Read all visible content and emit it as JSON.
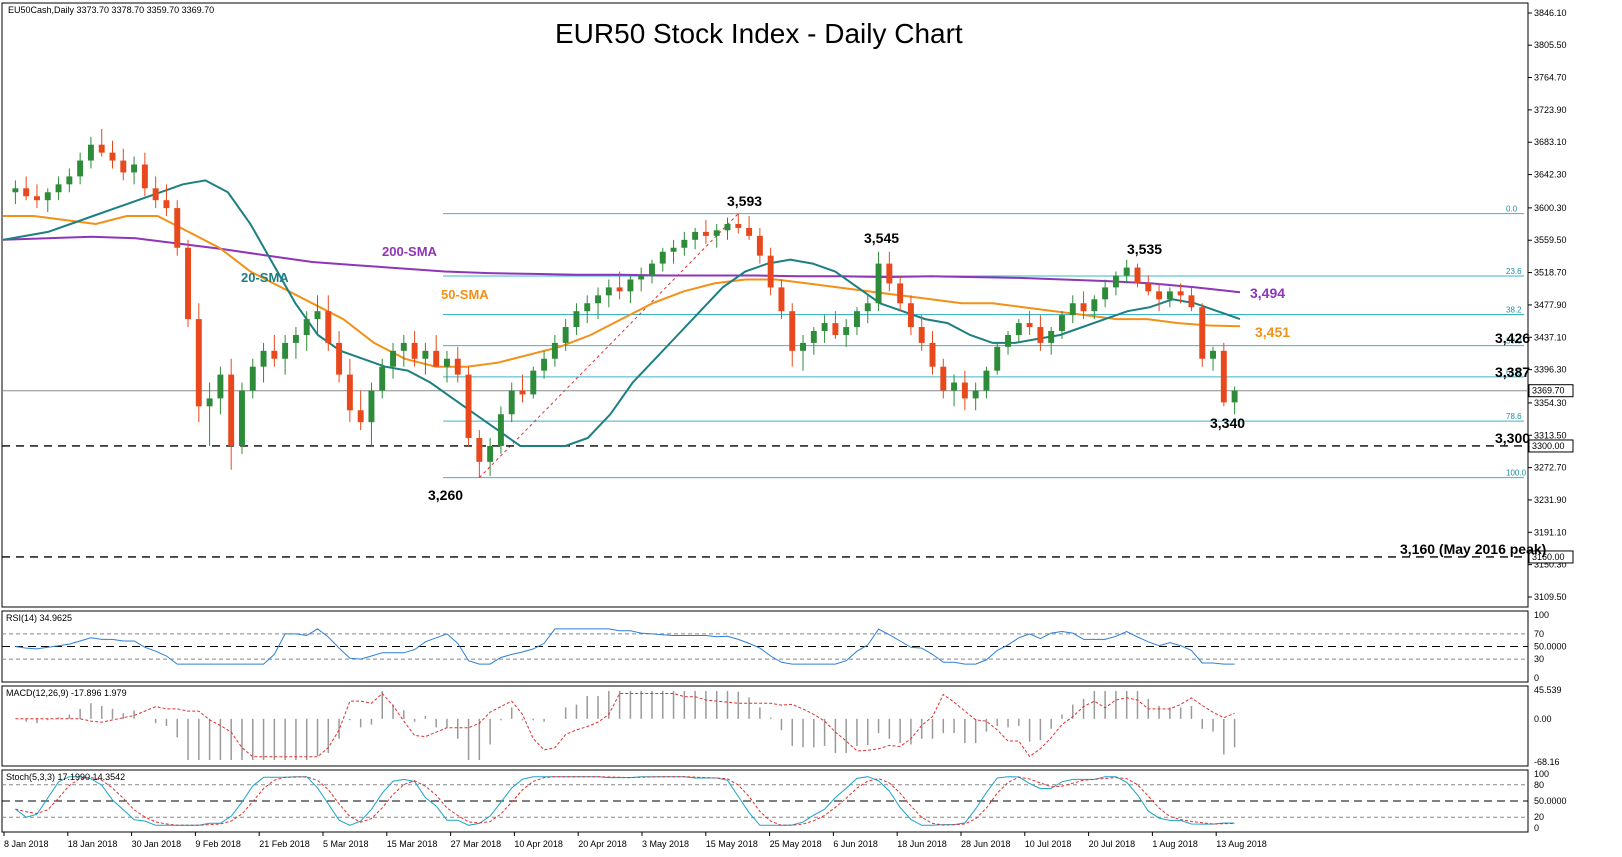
{
  "chart_data": {
    "type": "candlestick",
    "title": "EUR50 Stock Index - Daily Chart",
    "symbol_header": "EU50Cash,Daily 3373.70 3378.70 3359.70 3369.70",
    "price_axis": {
      "range": [
        3109.5,
        3846.1
      ],
      "ticks": [
        "3846.10",
        "3805.50",
        "3764.70",
        "3723.90",
        "3683.10",
        "3642.30",
        "3600.30",
        "3559.50",
        "3518.70",
        "3477.90",
        "3437.10",
        "3396.30",
        "3354.30",
        "3313.50",
        "3272.70",
        "3231.90",
        "3191.10",
        "3150.30",
        "3109.50"
      ],
      "current_price": "3369.70",
      "marked_levels": [
        "3300.00",
        "3160.00"
      ]
    },
    "dates": [
      "8 Jan 2018",
      "18 Jan 2018",
      "30 Jan 2018",
      "9 Feb 2018",
      "21 Feb 2018",
      "5 Mar 2018",
      "15 Mar 2018",
      "27 Mar 2018",
      "10 Apr 2018",
      "20 Apr 2018",
      "3 May 2018",
      "15 May 2018",
      "25 May 2018",
      "6 Jun 2018",
      "18 Jun 2018",
      "28 Jun 2018",
      "10 Jul 2018",
      "20 Jul 2018",
      "1 Aug 2018",
      "13 Aug 2018"
    ],
    "swing_labels": [
      "3,593",
      "3,545",
      "3,535",
      "3,260",
      "3,340"
    ],
    "level_labels": [
      "3,494",
      "3,451",
      "3,426",
      "3,387",
      "3,300",
      "3,160 (May 2016 peak)"
    ],
    "series_labels": {
      "sma200": "200-SMA",
      "sma20": "20-SMA",
      "sma50": "50-SMA"
    },
    "fibonacci": {
      "levels": [
        "0.0",
        "23.6",
        "38.2",
        "50.0",
        "61.8",
        "78.6",
        "100.0"
      ],
      "high": 3593,
      "low": 3260
    },
    "candles_ohlc": [
      [
        3620,
        3635,
        3605,
        3625
      ],
      [
        3625,
        3640,
        3610,
        3615
      ],
      [
        3615,
        3630,
        3600,
        3610
      ],
      [
        3610,
        3625,
        3595,
        3620
      ],
      [
        3620,
        3640,
        3610,
        3630
      ],
      [
        3630,
        3650,
        3620,
        3640
      ],
      [
        3640,
        3670,
        3630,
        3660
      ],
      [
        3660,
        3690,
        3650,
        3680
      ],
      [
        3680,
        3700,
        3665,
        3670
      ],
      [
        3670,
        3685,
        3650,
        3660
      ],
      [
        3660,
        3675,
        3635,
        3645
      ],
      [
        3645,
        3665,
        3630,
        3655
      ],
      [
        3655,
        3670,
        3615,
        3625
      ],
      [
        3625,
        3640,
        3600,
        3610
      ],
      [
        3610,
        3630,
        3590,
        3600
      ],
      [
        3600,
        3610,
        3540,
        3550
      ],
      [
        3550,
        3560,
        3450,
        3460
      ],
      [
        3460,
        3480,
        3330,
        3350
      ],
      [
        3350,
        3380,
        3300,
        3360
      ],
      [
        3360,
        3400,
        3340,
        3390
      ],
      [
        3390,
        3410,
        3270,
        3300
      ],
      [
        3300,
        3380,
        3290,
        3370
      ],
      [
        3370,
        3410,
        3360,
        3400
      ],
      [
        3400,
        3430,
        3380,
        3420
      ],
      [
        3420,
        3440,
        3400,
        3410
      ],
      [
        3410,
        3440,
        3390,
        3430
      ],
      [
        3430,
        3450,
        3410,
        3440
      ],
      [
        3440,
        3470,
        3420,
        3460
      ],
      [
        3460,
        3490,
        3440,
        3470
      ],
      [
        3470,
        3490,
        3420,
        3430
      ],
      [
        3430,
        3445,
        3380,
        3390
      ],
      [
        3390,
        3410,
        3330,
        3345
      ],
      [
        3345,
        3370,
        3320,
        3330
      ],
      [
        3330,
        3380,
        3300,
        3370
      ],
      [
        3370,
        3410,
        3360,
        3400
      ],
      [
        3400,
        3430,
        3385,
        3420
      ],
      [
        3420,
        3440,
        3400,
        3430
      ],
      [
        3430,
        3445,
        3400,
        3410
      ],
      [
        3410,
        3430,
        3390,
        3420
      ],
      [
        3420,
        3440,
        3400,
        3400
      ],
      [
        3400,
        3420,
        3380,
        3410
      ],
      [
        3410,
        3425,
        3380,
        3390
      ],
      [
        3390,
        3400,
        3300,
        3310
      ],
      [
        3310,
        3320,
        3260,
        3280
      ],
      [
        3280,
        3310,
        3262,
        3300
      ],
      [
        3300,
        3350,
        3290,
        3340
      ],
      [
        3340,
        3380,
        3330,
        3370
      ],
      [
        3370,
        3390,
        3355,
        3365
      ],
      [
        3365,
        3400,
        3360,
        3395
      ],
      [
        3395,
        3420,
        3385,
        3410
      ],
      [
        3410,
        3440,
        3400,
        3430
      ],
      [
        3430,
        3460,
        3420,
        3450
      ],
      [
        3450,
        3480,
        3440,
        3470
      ],
      [
        3470,
        3490,
        3455,
        3480
      ],
      [
        3480,
        3500,
        3460,
        3490
      ],
      [
        3490,
        3510,
        3475,
        3500
      ],
      [
        3500,
        3520,
        3485,
        3495
      ],
      [
        3495,
        3515,
        3480,
        3510
      ],
      [
        3510,
        3525,
        3495,
        3515
      ],
      [
        3515,
        3535,
        3505,
        3530
      ],
      [
        3530,
        3550,
        3520,
        3545
      ],
      [
        3545,
        3560,
        3530,
        3550
      ],
      [
        3550,
        3570,
        3540,
        3560
      ],
      [
        3560,
        3575,
        3548,
        3570
      ],
      [
        3570,
        3585,
        3555,
        3565
      ],
      [
        3565,
        3580,
        3550,
        3572
      ],
      [
        3572,
        3588,
        3560,
        3580
      ],
      [
        3580,
        3593,
        3568,
        3575
      ],
      [
        3575,
        3590,
        3560,
        3565
      ],
      [
        3565,
        3575,
        3530,
        3540
      ],
      [
        3540,
        3550,
        3490,
        3500
      ],
      [
        3500,
        3510,
        3460,
        3470
      ],
      [
        3470,
        3480,
        3400,
        3420
      ],
      [
        3420,
        3440,
        3395,
        3430
      ],
      [
        3430,
        3450,
        3415,
        3445
      ],
      [
        3445,
        3465,
        3430,
        3455
      ],
      [
        3455,
        3470,
        3435,
        3440
      ],
      [
        3440,
        3460,
        3425,
        3450
      ],
      [
        3450,
        3475,
        3440,
        3470
      ],
      [
        3470,
        3490,
        3455,
        3480
      ],
      [
        3480,
        3545,
        3470,
        3530
      ],
      [
        3530,
        3545,
        3495,
        3505
      ],
      [
        3505,
        3515,
        3470,
        3480
      ],
      [
        3480,
        3490,
        3440,
        3450
      ],
      [
        3450,
        3465,
        3420,
        3430
      ],
      [
        3430,
        3445,
        3390,
        3400
      ],
      [
        3400,
        3410,
        3360,
        3370
      ],
      [
        3370,
        3390,
        3350,
        3380
      ],
      [
        3380,
        3395,
        3345,
        3360
      ],
      [
        3360,
        3380,
        3345,
        3370
      ],
      [
        3370,
        3400,
        3360,
        3395
      ],
      [
        3395,
        3430,
        3390,
        3425
      ],
      [
        3425,
        3445,
        3415,
        3440
      ],
      [
        3440,
        3460,
        3430,
        3455
      ],
      [
        3455,
        3470,
        3440,
        3450
      ],
      [
        3450,
        3465,
        3420,
        3430
      ],
      [
        3430,
        3450,
        3415,
        3445
      ],
      [
        3445,
        3470,
        3435,
        3465
      ],
      [
        3465,
        3490,
        3455,
        3480
      ],
      [
        3480,
        3495,
        3460,
        3470
      ],
      [
        3470,
        3490,
        3460,
        3485
      ],
      [
        3485,
        3510,
        3475,
        3500
      ],
      [
        3500,
        3520,
        3490,
        3515
      ],
      [
        3515,
        3535,
        3505,
        3525
      ],
      [
        3525,
        3530,
        3500,
        3505
      ],
      [
        3505,
        3515,
        3490,
        3495
      ],
      [
        3495,
        3505,
        3470,
        3485
      ],
      [
        3485,
        3500,
        3475,
        3495
      ],
      [
        3495,
        3505,
        3480,
        3490
      ],
      [
        3490,
        3500,
        3470,
        3475
      ],
      [
        3475,
        3480,
        3400,
        3410
      ],
      [
        3410,
        3425,
        3395,
        3420
      ],
      [
        3420,
        3430,
        3350,
        3355
      ],
      [
        3355,
        3375,
        3340,
        3370
      ]
    ],
    "sma20": [
      3560,
      3565,
      3570,
      3580,
      3590,
      3600,
      3610,
      3620,
      3630,
      3635,
      3620,
      3580,
      3530,
      3480,
      3440,
      3420,
      3410,
      3400,
      3395,
      3380,
      3360,
      3340,
      3320,
      3300,
      3300,
      3300,
      3310,
      3340,
      3380,
      3410,
      3440,
      3470,
      3500,
      3520,
      3530,
      3535,
      3530,
      3520,
      3500,
      3480,
      3470,
      3460,
      3455,
      3440,
      3430,
      3430,
      3435,
      3440,
      3450,
      3460,
      3470,
      3475,
      3485,
      3480,
      3470,
      3460
    ],
    "sma50": [
      3590,
      3590,
      3585,
      3580,
      3590,
      3590,
      3570,
      3550,
      3520,
      3500,
      3480,
      3460,
      3430,
      3410,
      3400,
      3400,
      3405,
      3415,
      3425,
      3440,
      3460,
      3480,
      3495,
      3505,
      3510,
      3510,
      3505,
      3500,
      3495,
      3490,
      3485,
      3480,
      3480,
      3475,
      3470,
      3465,
      3460,
      3460,
      3455,
      3452,
      3451
    ],
    "sma200": [
      3560,
      3562,
      3564,
      3562,
      3555,
      3548,
      3540,
      3532,
      3528,
      3524,
      3520,
      3518,
      3517,
      3516,
      3516,
      3515,
      3515,
      3515,
      3514,
      3514,
      3513,
      3514,
      3513,
      3512,
      3510,
      3508,
      3505,
      3500,
      3494
    ],
    "rsi": {
      "label": "RSI(14) 34.9625",
      "levels": [
        "70",
        "50.0000",
        "30"
      ],
      "axis": [
        "100",
        "0"
      ]
    },
    "macd": {
      "label": "MACD(12,26,9) -17.896 1.979",
      "axis": [
        "45.539",
        "0.00",
        "-68.16"
      ]
    },
    "stoch": {
      "label": "Stoch(5,3,3) 17.1990 14.3542",
      "axis": [
        "100",
        "80",
        "50.0000",
        "20",
        "0"
      ]
    }
  }
}
